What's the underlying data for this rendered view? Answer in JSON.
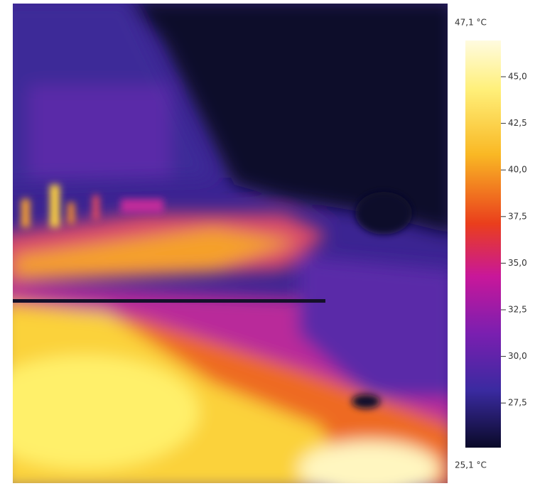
{
  "scale": {
    "max_label": "47,1 °C",
    "min_label": "25,1 °C",
    "ticks": [
      "45,0",
      "42,5",
      "40,0",
      "37,5",
      "35,0",
      "32,5",
      "30,0",
      "27,5"
    ]
  }
}
